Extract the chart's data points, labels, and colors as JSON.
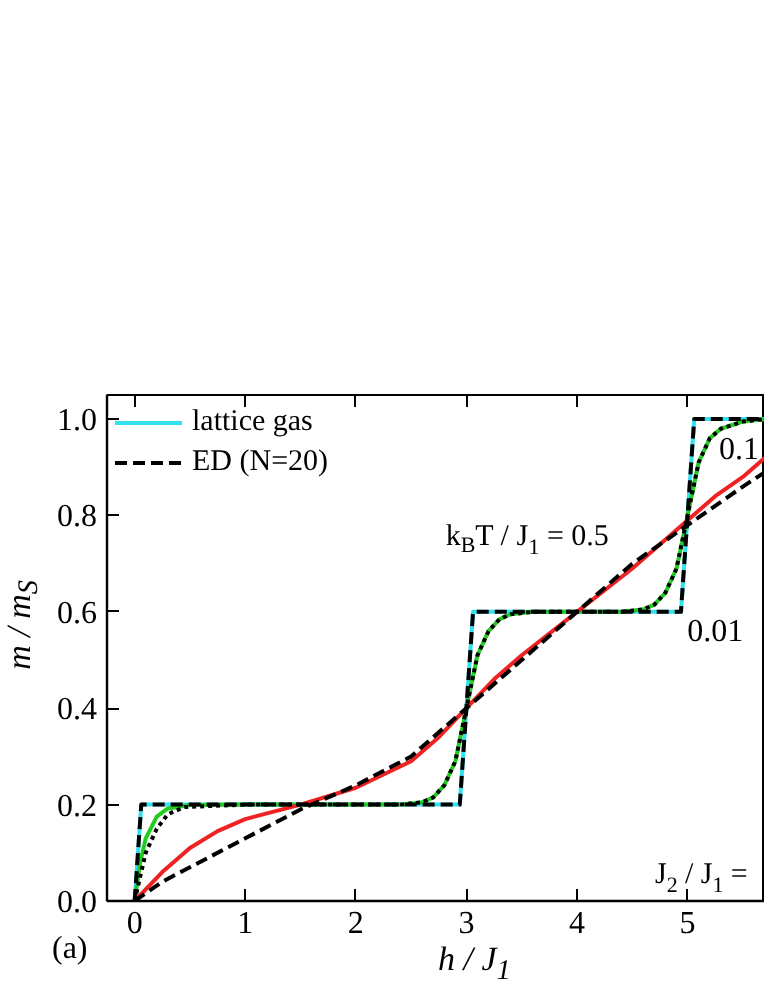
{
  "chart_data": {
    "type": "line",
    "xlabel": "h / J$_{1}$",
    "ylabel": "m / m$_{S}$",
    "xlim": [
      -0.25,
      5.7
    ],
    "ylim": [
      0,
      1.05
    ],
    "xticks": [
      0,
      1,
      2,
      3,
      4,
      5
    ],
    "yticks": [
      {
        "value": 0,
        "label": "0.0"
      },
      0.2,
      0.4,
      0.6,
      0.8,
      {
        "value": 1.0,
        "label": "1.0"
      }
    ],
    "grid": false,
    "legend": "top left",
    "series": [
      {
        "name": "lattice gas",
        "color": "#33e0f0",
        "line_style": "solid",
        "x": [
          0,
          0.06,
          2.94,
          3,
          3.06,
          4.94,
          5,
          5.06,
          5.7
        ],
        "values": [
          0,
          0.2,
          0.2,
          0.4,
          0.6,
          0.6,
          0.8,
          1.0,
          1.0
        ]
      },
      {
        "color": "#22cc22",
        "line_style": "solid",
        "x": [
          0,
          0.05,
          0.1,
          0.2,
          0.3,
          0.5,
          1,
          2.4,
          2.6,
          2.7,
          2.8,
          2.9,
          3,
          3.1,
          3.2,
          3.3,
          3.4,
          3.6,
          4.4,
          4.6,
          4.7,
          4.8,
          4.9,
          5,
          5.1,
          5.2,
          5.3,
          5.5,
          5.7
        ],
        "values": [
          0,
          0.08,
          0.13,
          0.175,
          0.192,
          0.199,
          0.2,
          0.2,
          0.205,
          0.215,
          0.24,
          0.29,
          0.4,
          0.51,
          0.56,
          0.585,
          0.595,
          0.6,
          0.6,
          0.605,
          0.615,
          0.64,
          0.69,
          0.8,
          0.91,
          0.96,
          0.98,
          0.995,
          1.0
        ]
      },
      {
        "color": "#ee2222",
        "line_style": "solid",
        "x": [
          0,
          0.25,
          0.5,
          0.75,
          1,
          1.5,
          2,
          2.5,
          2.75,
          3,
          3.25,
          3.5,
          4,
          4.5,
          5,
          5.25,
          5.5,
          5.7
        ],
        "values": [
          0,
          0.06,
          0.11,
          0.145,
          0.17,
          0.2,
          0.235,
          0.29,
          0.34,
          0.4,
          0.46,
          0.51,
          0.6,
          0.69,
          0.79,
          0.84,
          0.88,
          0.92
        ]
      },
      {
        "name": "ED (N=20)",
        "color": "#000000",
        "line_style": "dashed",
        "x": [
          0,
          0.06,
          2.94,
          3,
          3.06,
          4.94,
          5,
          5.06,
          5.7
        ],
        "values": [
          0,
          0.2,
          0.2,
          0.4,
          0.6,
          0.6,
          0.8,
          1.0,
          1.0
        ]
      },
      {
        "color": "#000000",
        "line_style": "dotted",
        "x": [
          0,
          0.05,
          0.1,
          0.2,
          0.3,
          0.45,
          1,
          2.4,
          2.6,
          2.7,
          2.8,
          2.9,
          3,
          3.1,
          3.2,
          3.3,
          3.4,
          3.6,
          4.4,
          4.6,
          4.7,
          4.8,
          4.9,
          5,
          5.1,
          5.2,
          5.3,
          5.5,
          5.7
        ],
        "values": [
          0,
          0.05,
          0.1,
          0.15,
          0.18,
          0.195,
          0.2,
          0.2,
          0.205,
          0.215,
          0.24,
          0.29,
          0.4,
          0.51,
          0.56,
          0.585,
          0.595,
          0.6,
          0.6,
          0.605,
          0.615,
          0.64,
          0.69,
          0.8,
          0.91,
          0.96,
          0.98,
          0.995,
          1.0
        ]
      },
      {
        "color": "#000000",
        "line_style": "dashed",
        "x": [
          0,
          0.25,
          0.5,
          1,
          1.5,
          2,
          2.5,
          3,
          3.5,
          4,
          4.5,
          5,
          5.5,
          5.7
        ],
        "values": [
          0,
          0.04,
          0.07,
          0.13,
          0.19,
          0.24,
          0.3,
          0.4,
          0.5,
          0.6,
          0.7,
          0.78,
          0.86,
          0.89
        ]
      }
    ],
    "annotations": [
      "k$_{B}$T / J$_{1}$ = 0.5",
      "0.1",
      "0.01",
      "J$_{2}$ / J$_{1}$ =",
      "(a)"
    ]
  }
}
